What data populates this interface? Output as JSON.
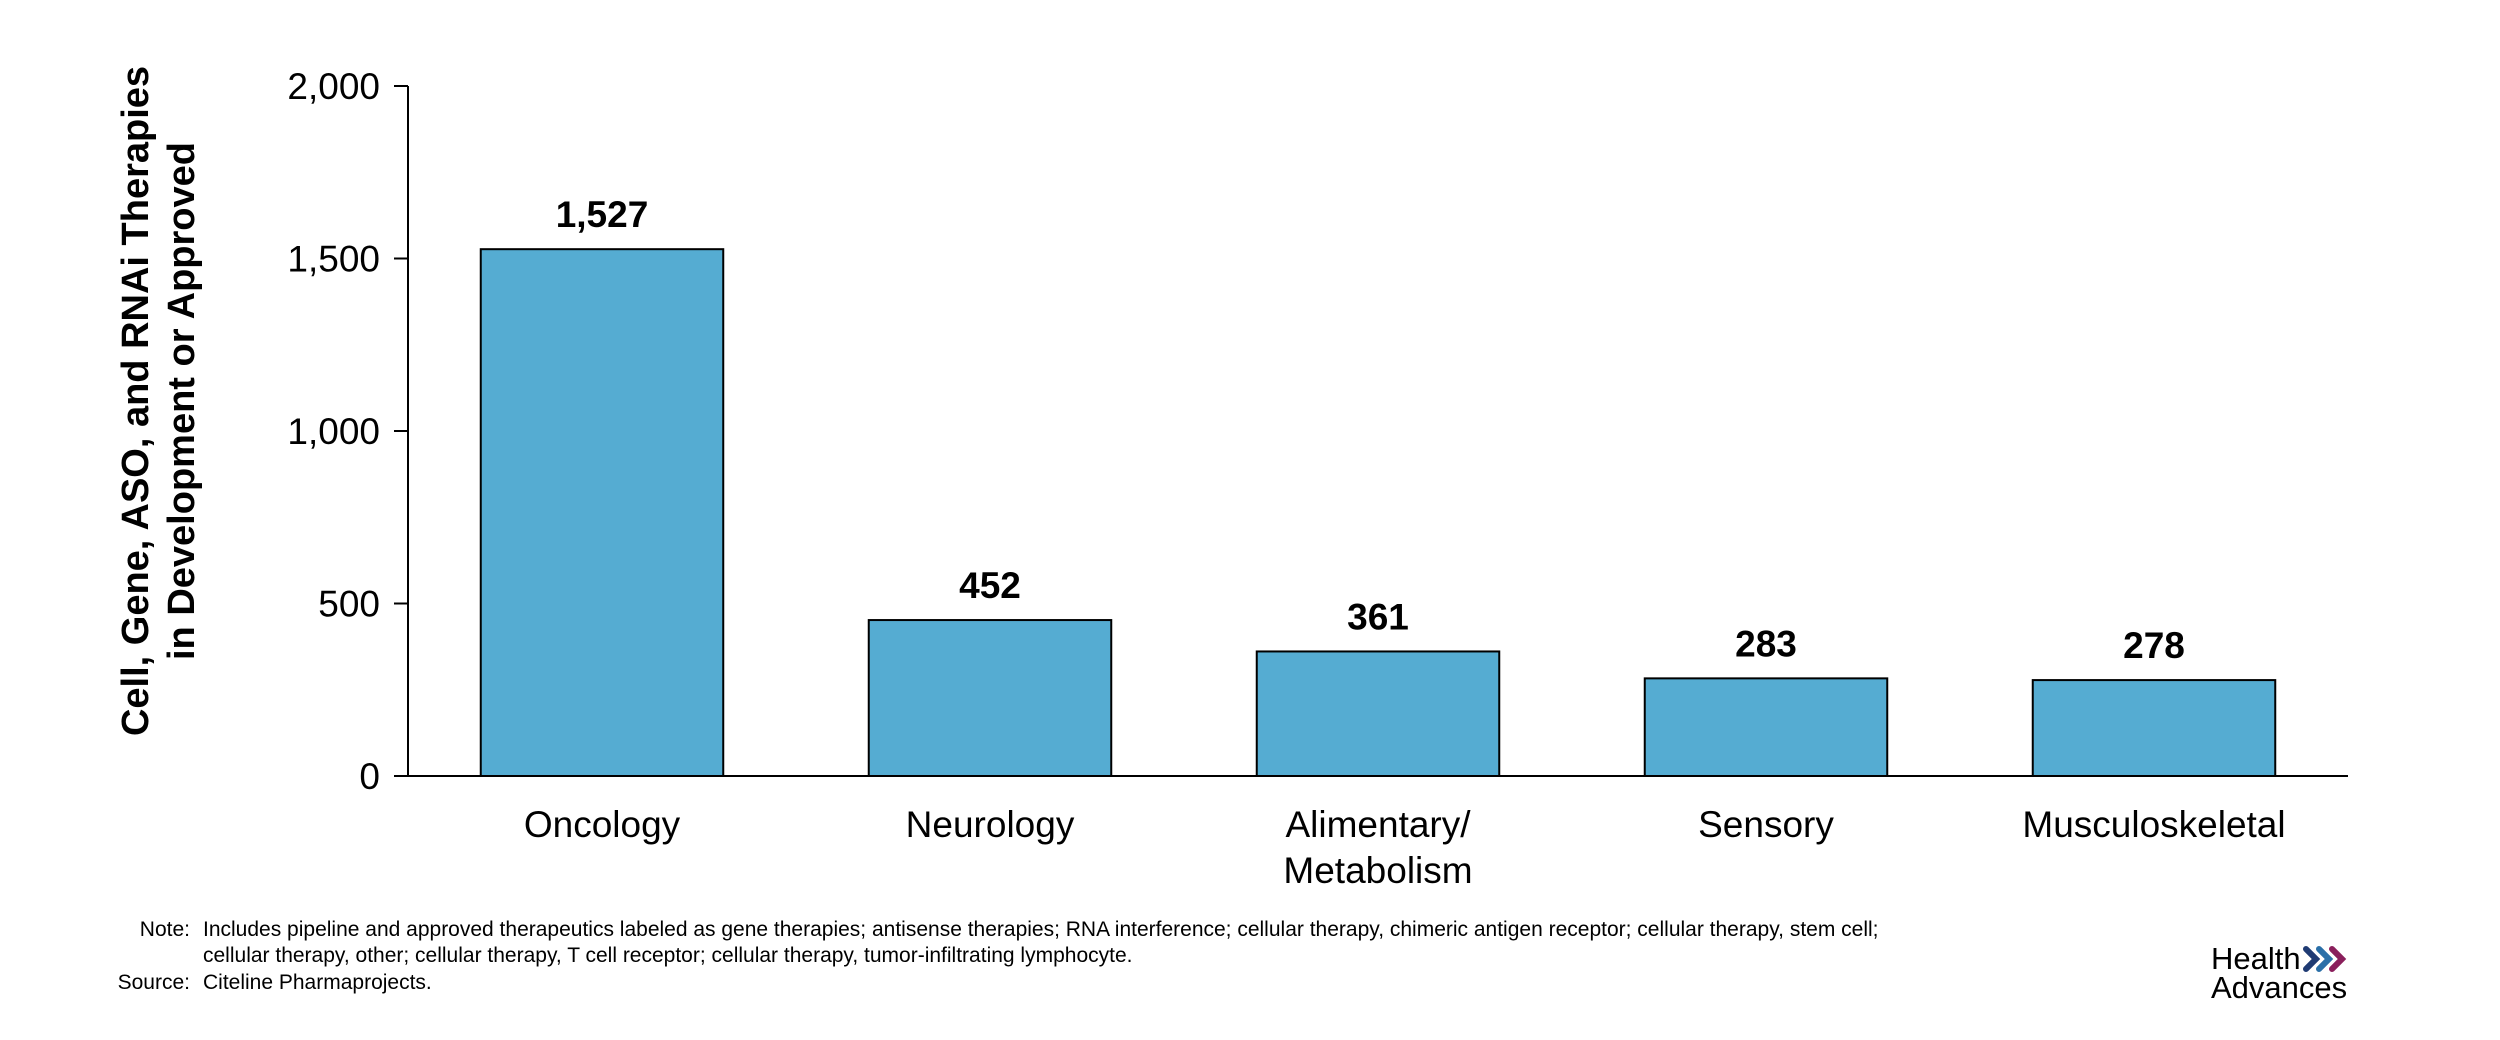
{
  "chart_data": {
    "type": "bar",
    "categories": [
      "Oncology",
      "Neurology",
      "Alimentary/\nMetabolism",
      "Sensory",
      "Musculoskeletal"
    ],
    "values": [
      1527,
      452,
      361,
      283,
      278
    ],
    "value_labels": [
      "1,527",
      "452",
      "361",
      "283",
      "278"
    ],
    "title": "",
    "xlabel": "",
    "ylabel": "Cell, Gene, ASO, and RNAi Therapies\nin Development or Approved",
    "ylim": [
      0,
      2000
    ],
    "yticks": [
      0,
      500,
      1000,
      1500,
      2000
    ],
    "ytick_labels": [
      "0",
      "500",
      "1,000",
      "1,500",
      "2,000"
    ],
    "grid": false,
    "legend": "none",
    "bar_color": "#55ACD2",
    "bar_edge_color": "#000000"
  },
  "footnotes": {
    "note_label": "Note:",
    "note_line1": "Includes pipeline and approved therapeutics labeled as gene therapies; antisense therapies; RNA interference; cellular therapy, chimeric antigen receptor; cellular therapy, stem cell;",
    "note_line2": "cellular therapy, other; cellular therapy, T cell receptor; cellular therapy, tumor-infiltrating lymphocyte.",
    "source_label": "Source:",
    "source_text": "Citeline Pharmaprojects."
  },
  "logo": {
    "line1": "Health",
    "line2": "Advances",
    "chevron_colors": [
      "#1F3B73",
      "#2A6FA8",
      "#8A1F5C"
    ],
    "icon": "triple-chevron-icon"
  }
}
